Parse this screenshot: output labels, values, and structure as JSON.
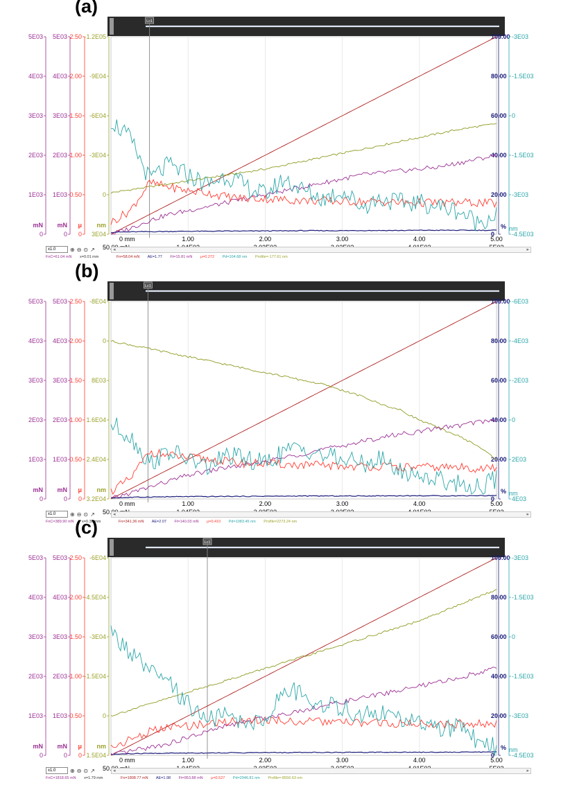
{
  "colors": {
    "force": "#9b2f93",
    "ae": "#9b2f93",
    "mu": "#ff3b30",
    "profile": "#9aa22a",
    "pd": "#2aa5a8",
    "ramp": "#b02020",
    "percent": "#1a1a7a",
    "green_trend": "#8f9a20"
  },
  "toolbar": {
    "zoom": "x1.0"
  },
  "chart_data": [
    {
      "panel": "(a)",
      "type": "line",
      "lc_label": "Lc1",
      "lc_x": 0.5,
      "units": {
        "force": "mN",
        "force2": "mN",
        "mu": "μ",
        "profile": "nm",
        "percent": "%",
        "pd": "nm"
      },
      "axes": {
        "force_ticks": [
          "0",
          "1E03",
          "2E03",
          "3E03",
          "4E03",
          "5E03"
        ],
        "force2_ticks": [
          "0",
          "1E03",
          "2E03",
          "3E03",
          "4E03",
          "5E03"
        ],
        "mu_ticks": [
          "0",
          "0.50",
          "1.00",
          "1.50",
          "2.00",
          "2.50"
        ],
        "profile_ticks": [
          "3E04",
          "0",
          "-3E04",
          "-6E04",
          "-9E04",
          "-1.2E05"
        ],
        "percent_ticks": [
          "0",
          "20.00",
          "40.00",
          "60.00",
          "80.00",
          "100.00"
        ],
        "pd_ticks": [
          "-4.5E03",
          "-3E03",
          "-1.5E03",
          "0",
          "-1.5E03",
          "-3E03"
        ],
        "x_top_ticks": [
          "0 mm",
          "1.00",
          "2.00",
          "3.00",
          "4.00",
          "5.00"
        ],
        "x_bottom_ticks": [
          "50.00 mN",
          "1.04E03",
          "2.03E03",
          "3.02E03",
          "4.01E03",
          "5E03"
        ],
        "xlim": [
          0,
          5
        ]
      },
      "x": [
        0,
        0.25,
        0.5,
        0.75,
        1,
        1.25,
        1.5,
        1.75,
        2,
        2.25,
        2.5,
        2.75,
        3,
        3.25,
        3.5,
        3.75,
        4,
        4.25,
        4.5,
        4.75,
        5
      ],
      "series": [
        {
          "key": "ramp",
          "values": [
            0,
            5,
            10,
            15,
            20,
            25,
            30,
            35,
            40,
            45,
            50,
            55,
            60,
            65,
            70,
            75,
            80,
            85,
            90,
            95,
            100
          ]
        },
        {
          "key": "green_trend",
          "values": [
            21,
            22.5,
            24,
            25.5,
            27,
            28.5,
            30,
            31.5,
            33,
            35,
            37,
            39,
            41,
            43,
            45,
            47,
            49,
            51,
            53,
            54.5,
            56
          ]
        },
        {
          "key": "percent",
          "values": [
            1,
            1.2,
            1.3,
            1.4,
            1.5,
            1.5,
            1.6,
            1.6,
            1.7,
            1.7,
            1.8,
            1.8,
            1.8,
            1.9,
            1.9,
            1.9,
            2,
            2,
            2,
            2,
            2
          ]
        },
        {
          "key": "force",
          "values": [
            0,
            3,
            7,
            10,
            12,
            14,
            16,
            18,
            20,
            22,
            24,
            26,
            28,
            30,
            31,
            32,
            33,
            34,
            36,
            38,
            40
          ]
        },
        {
          "key": "mu",
          "values": [
            6,
            12,
            26,
            24,
            22,
            21,
            19,
            18,
            18,
            17.5,
            17,
            17,
            16.5,
            16.5,
            16.5,
            16,
            16,
            16,
            16,
            16,
            15.5
          ]
        },
        {
          "key": "pd",
          "values": [
            58,
            48,
            28,
            35,
            30,
            25,
            30,
            24,
            20,
            28,
            22,
            18,
            22,
            14,
            18,
            16,
            16,
            14,
            12,
            6,
            10
          ]
        }
      ]
    },
    {
      "panel": "(b)",
      "type": "line",
      "lc_label": "Lc1",
      "lc_x": 0.48,
      "units": {
        "force": "mN",
        "force2": "mN",
        "mu": "μ",
        "profile": "nm",
        "percent": "%",
        "pd": "nm"
      },
      "axes": {
        "force_ticks": [
          "0",
          "1E03",
          "2E03",
          "3E03",
          "4E03",
          "5E03"
        ],
        "force2_ticks": [
          "0",
          "1E03",
          "2E03",
          "3E03",
          "4E03",
          "5E03"
        ],
        "mu_ticks": [
          "0",
          "0.50",
          "1.00",
          "1.50",
          "2.00",
          "2.50"
        ],
        "profile_ticks": [
          "3.2E04",
          "2.4E04",
          "1.6E04",
          "8E03",
          "0",
          "-8E04"
        ],
        "percent_ticks": [
          "0",
          "20.00",
          "40.00",
          "60.00",
          "80.00",
          "100.00"
        ],
        "pd_ticks": [
          "4E03",
          "2E03",
          "0",
          "-2E03",
          "-4E03",
          "-6E03"
        ],
        "x_top_ticks": [
          "0 mm",
          "1.00",
          "2.00",
          "3.00",
          "4.00",
          "5.00"
        ],
        "x_bottom_ticks": [
          "50.00 mN",
          "1.04E03",
          "2.03E03",
          "3.02E03",
          "4.01E03",
          "5E03"
        ],
        "xlim": [
          0,
          5
        ]
      },
      "x": [
        0,
        0.25,
        0.5,
        0.75,
        1,
        1.25,
        1.5,
        1.75,
        2,
        2.25,
        2.5,
        2.75,
        3,
        3.25,
        3.5,
        3.75,
        4,
        4.25,
        4.5,
        4.75,
        5
      ],
      "series": [
        {
          "key": "ramp",
          "values": [
            0,
            5,
            10,
            15,
            20,
            25,
            30,
            35,
            40,
            45,
            50,
            55,
            60,
            65,
            70,
            75,
            80,
            85,
            90,
            95,
            100
          ]
        },
        {
          "key": "green_trend",
          "values": [
            80,
            78,
            76,
            74,
            72,
            70,
            68,
            66,
            64,
            62,
            60,
            58,
            55,
            52,
            48,
            45,
            40,
            36,
            32,
            27,
            20
          ]
        },
        {
          "key": "percent",
          "values": [
            0.5,
            0.8,
            1,
            1.1,
            1.2,
            1.2,
            1.3,
            1.3,
            1.4,
            1.4,
            1.5,
            1.5,
            1.5,
            1.5,
            1.6,
            1.6,
            1.6,
            1.6,
            1.6,
            1.7,
            1.7
          ]
        },
        {
          "key": "force",
          "values": [
            0,
            3,
            6,
            9,
            12,
            14,
            16,
            17,
            19,
            21,
            23,
            25,
            27,
            29,
            31,
            33,
            34,
            36,
            37,
            39,
            40
          ]
        },
        {
          "key": "mu",
          "values": [
            4,
            10,
            24,
            22,
            21,
            20,
            19,
            18,
            18,
            17.5,
            17,
            17,
            16.5,
            16.5,
            16.5,
            16,
            16,
            16,
            16,
            15.5,
            15.5
          ]
        },
        {
          "key": "pd",
          "values": [
            38,
            32,
            18,
            24,
            20,
            16,
            22,
            20,
            18,
            24,
            26,
            22,
            20,
            18,
            20,
            14,
            12,
            10,
            8,
            6,
            10
          ]
        }
      ]
    },
    {
      "panel": "(c)",
      "type": "line",
      "lc_label": "Lc1",
      "lc_x": 1.25,
      "units": {
        "force": "mN",
        "force2": "mN",
        "mu": "μ",
        "profile": "nm",
        "percent": "%",
        "pd": "nm"
      },
      "axes": {
        "force_ticks": [
          "0",
          "1E03",
          "2E03",
          "3E03",
          "4E03",
          "5E03"
        ],
        "force2_ticks": [
          "0",
          "1E03",
          "2E03",
          "3E03",
          "4E03",
          "5E03"
        ],
        "mu_ticks": [
          "0",
          "0.50",
          "1.00",
          "1.50",
          "2.00",
          "2.50"
        ],
        "profile_ticks": [
          "1.5E04",
          "0",
          "-1.5E04",
          "-3E04",
          "-4.5E04",
          "-6E04"
        ],
        "percent_ticks": [
          "0",
          "20.00",
          "40.00",
          "60.00",
          "80.00",
          "100.00"
        ],
        "pd_ticks": [
          "-4.5E03",
          "-3E03",
          "-1.5E03",
          "0",
          "-1.5E03",
          "-3E03"
        ],
        "x_top_ticks": [
          "0 mm",
          "1.00",
          "2.00",
          "3.00",
          "4.00",
          "5.00"
        ],
        "x_bottom_ticks": [
          "50.00 mN",
          "1.04E03",
          "2.03E03",
          "3.02E03",
          "4.01E03",
          "5E03"
        ],
        "xlim": [
          0,
          5
        ]
      },
      "x": [
        0,
        0.25,
        0.5,
        0.75,
        1,
        1.25,
        1.5,
        1.75,
        2,
        2.25,
        2.5,
        2.75,
        3,
        3.25,
        3.5,
        3.75,
        4,
        4.25,
        4.5,
        4.75,
        5
      ],
      "series": [
        {
          "key": "ramp",
          "values": [
            0,
            5,
            10,
            15,
            20,
            25,
            30,
            35,
            40,
            45,
            50,
            55,
            60,
            65,
            70,
            75,
            80,
            85,
            90,
            95,
            100
          ]
        },
        {
          "key": "green_trend",
          "values": [
            20,
            23,
            26,
            29,
            32,
            35,
            38,
            41,
            44,
            47,
            50,
            53,
            56,
            59,
            62,
            65,
            68,
            72,
            76,
            80,
            84
          ]
        },
        {
          "key": "percent",
          "values": [
            0.5,
            0.8,
            1,
            1.1,
            1.2,
            1.2,
            1.3,
            1.3,
            1.4,
            1.4,
            1.5,
            1.5,
            1.5,
            1.5,
            1.6,
            1.6,
            1.6,
            1.6,
            1.6,
            1.7,
            1.7
          ]
        },
        {
          "key": "force",
          "values": [
            0,
            2,
            4,
            6,
            9,
            12,
            15,
            17,
            19,
            21,
            23,
            25,
            27,
            29,
            31,
            33,
            35,
            37,
            39,
            42,
            44
          ]
        },
        {
          "key": "mu",
          "values": [
            4,
            8,
            12,
            14,
            15,
            16,
            17,
            18,
            18,
            17.5,
            17,
            17,
            16.5,
            16.5,
            16.5,
            16,
            16,
            16,
            16,
            16,
            15.5
          ]
        },
        {
          "key": "pd",
          "values": [
            62,
            52,
            42,
            36,
            26,
            18,
            20,
            16,
            18,
            34,
            30,
            26,
            24,
            20,
            22,
            18,
            16,
            14,
            14,
            8,
            4
          ]
        }
      ]
    }
  ],
  "status_bars": [
    {
      "fnc": "FnC=61.04 mN",
      "xc": "x=0.01 mm",
      "fn": "Fn=58.04 mN",
      "ae": "AE=1.77",
      "ft": "Ft=15.81 mN",
      "mu": "μ=0.272",
      "pd": "Pd=104.68 nm",
      "profile": "Profile=-177.61 nm"
    },
    {
      "fnc": "FnC=389.90 mN",
      "xc": "x=0.30 mm",
      "fn": "Fn=341.36 mN",
      "ae": "AE=2.07",
      "ft": "Ft=140.03 mN",
      "mu": "μ=0.410",
      "pd": "Pd=1083.45 nm",
      "profile": "Profile=2273.24 nm"
    },
    {
      "fnc": "FnC=1818.65 mN",
      "xc": "x=1.79 mm",
      "fn": "Fn=1808.77 mN",
      "ae": "AE=1.98",
      "ft": "Ft=953.88 mN",
      "mu": "μ=0.527",
      "pd": "Pd=2946.81 nm",
      "profile": "Profile=-8556.63 nm"
    }
  ]
}
